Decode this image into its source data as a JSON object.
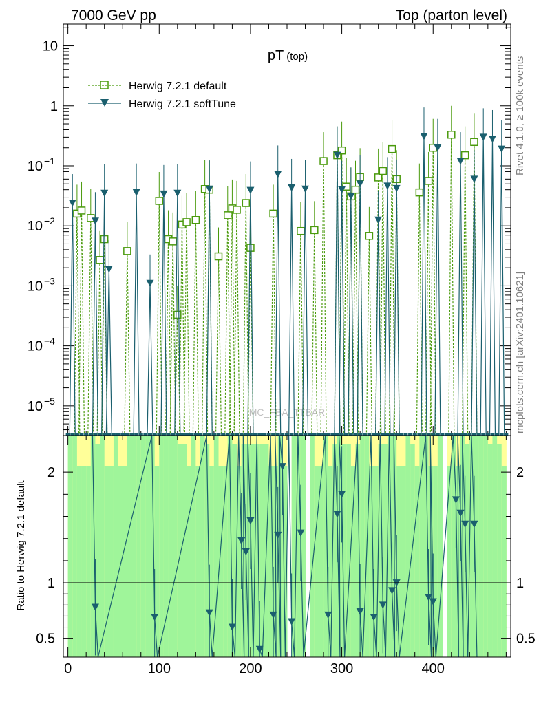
{
  "header": {
    "left": "7000 GeV pp",
    "right": "Top (parton level)"
  },
  "side": {
    "rivet": "Rivet 4.1.0, ≥ 100k events",
    "mcplots": "mcplots.cern.ch [arXiv:2401.10621]"
  },
  "chart_data": [
    {
      "type": "line",
      "title": "pT",
      "title_sub": "(top)",
      "watermark": "MC_FBA_TTBAR",
      "yscale": "log",
      "xlim": [
        -5,
        485
      ],
      "ylim": [
        3.2e-06,
        23
      ],
      "y_ticks": [
        {
          "value": 10,
          "label": "10",
          "sup": ""
        },
        {
          "value": 1,
          "label": "1",
          "sup": ""
        },
        {
          "value": 0.1,
          "label": "10",
          "sup": "−1"
        },
        {
          "value": 0.01,
          "label": "10",
          "sup": "−2"
        },
        {
          "value": 0.001,
          "label": "10",
          "sup": "−3"
        },
        {
          "value": 0.0001,
          "label": "10",
          "sup": "−4"
        },
        {
          "value": 1e-05,
          "label": "10",
          "sup": "−5"
        }
      ],
      "legend": {
        "position": "top-left",
        "entries": [
          "Herwig 7.2.1 default",
          "Herwig 7.2.1 softTune"
        ]
      },
      "series": [
        {
          "name": "Herwig 7.2.1 default",
          "style": "dashed-open-square",
          "color": "#4a9a0c",
          "x": [
            10,
            15,
            25,
            35,
            40,
            65,
            100,
            110,
            115,
            120,
            125,
            130,
            140,
            150,
            155,
            165,
            175,
            180,
            185,
            195,
            200,
            225,
            255,
            270,
            280,
            295,
            300,
            305,
            310,
            315,
            320,
            330,
            340,
            345,
            355,
            360,
            385,
            395,
            400,
            420,
            435,
            445
          ],
          "y": [
            0.016,
            0.018,
            0.0135,
            0.0027,
            0.006,
            0.0038,
            0.026,
            0.006,
            0.0055,
            0.00033,
            0.0105,
            0.0115,
            0.0125,
            0.041,
            0.04,
            0.0031,
            0.015,
            0.0195,
            0.0185,
            0.024,
            0.0043,
            0.016,
            0.0082,
            0.0085,
            0.12,
            0.15,
            0.18,
            0.045,
            0.031,
            0.04,
            0.065,
            0.0068,
            0.064,
            0.082,
            0.19,
            0.06,
            0.036,
            0.056,
            0.2,
            0.33,
            0.15,
            0.25
          ]
        },
        {
          "name": "Herwig 7.2.1 softTune",
          "style": "solid-filled-triangle",
          "color": "#1a5f6e",
          "x": [
            5,
            30,
            40,
            45,
            75,
            90,
            105,
            120,
            155,
            200,
            230,
            245,
            260,
            295,
            300,
            310,
            320,
            340,
            350,
            360,
            390,
            405,
            430,
            445,
            455,
            465,
            475
          ],
          "y": [
            0.024,
            0.012,
            0.035,
            0.0019,
            0.036,
            0.0011,
            0.034,
            0.035,
            0.041,
            0.039,
            0.072,
            0.043,
            0.041,
            0.15,
            0.04,
            0.031,
            0.05,
            0.0125,
            0.046,
            0.042,
            0.31,
            0.2,
            0.12,
            0.06,
            0.3,
            0.28,
            0.19
          ]
        }
      ]
    },
    {
      "type": "line",
      "ylabel": "Ratio to Herwig 7.2.1 default",
      "xlim": [
        -5,
        485
      ],
      "ylim": [
        0.33,
        2.33
      ],
      "x_ticks": [
        0,
        100,
        200,
        300,
        400
      ],
      "y_ticks": [
        0.5,
        1,
        2
      ],
      "band_colors": {
        "inner": "#9ff59a",
        "outer": "#ffff99"
      },
      "series": [
        {
          "name": "Herwig 7.2.1 softTune / default",
          "color": "#1a5f6e",
          "x": [
            30,
            95,
            155,
            180,
            190,
            195,
            200,
            210,
            225,
            230,
            235,
            245,
            255,
            285,
            295,
            300,
            320,
            335,
            345,
            355,
            360,
            395,
            400,
            425,
            430,
            435,
            445
          ],
          "y": [
            0.78,
            0.69,
            0.73,
            0.6,
            1.38,
            1.28,
            1.56,
            0.4,
            0.71,
            1.43,
            2.05,
            0.65,
            1.45,
            0.71,
            1.62,
            1.8,
            0.74,
            0.69,
            0.8,
            0.93,
            1.0,
            0.87,
            0.83,
            1.75,
            1.63,
            1.53,
            1.53
          ]
        }
      ]
    }
  ]
}
